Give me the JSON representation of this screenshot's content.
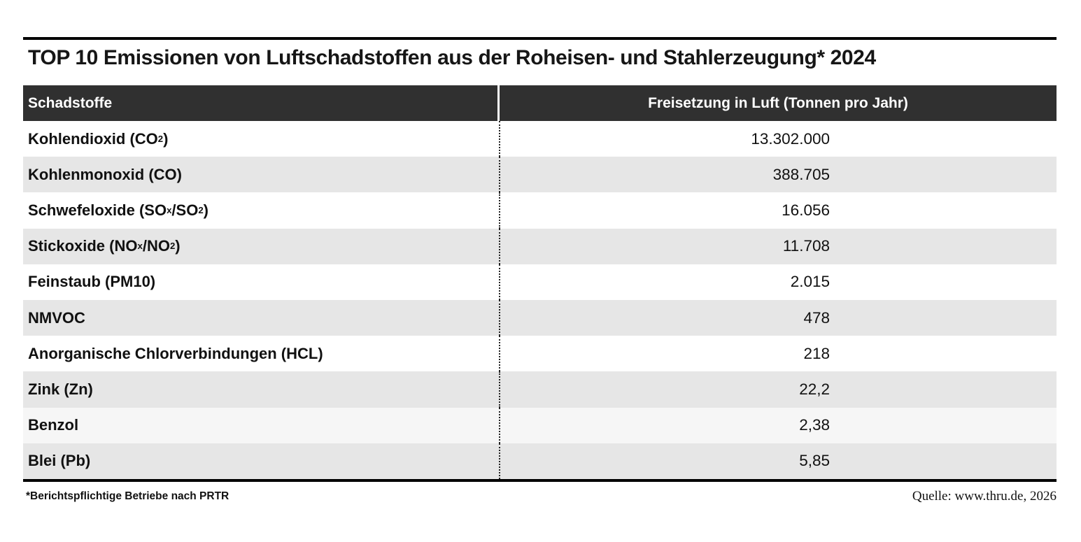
{
  "title": "TOP 10 Emissionen von Luftschadstoffen aus der Roheisen- und Stahlerzeugung* 2024",
  "table": {
    "columns": [
      "Schadstoffe",
      "Freisetzung in Luft (Tonnen pro Jahr)"
    ],
    "rows": [
      {
        "label_parts": [
          {
            "text": "Kohlendioxid (CO"
          },
          {
            "text": "2",
            "sub": true
          },
          {
            "text": ")"
          }
        ],
        "value": "13.302.000",
        "shade": "white"
      },
      {
        "label_parts": [
          {
            "text": "Kohlenmonoxid (CO)"
          }
        ],
        "value": "388.705",
        "shade": "gray"
      },
      {
        "label_parts": [
          {
            "text": "Schwefeloxide (SO"
          },
          {
            "text": "x",
            "sub": true
          },
          {
            "text": "/SO"
          },
          {
            "text": "2",
            "sub": true
          },
          {
            "text": ")"
          }
        ],
        "value": "16.056",
        "shade": "white"
      },
      {
        "label_parts": [
          {
            "text": "Stickoxide (NO"
          },
          {
            "text": "x",
            "sub": true
          },
          {
            "text": "/NO"
          },
          {
            "text": "2",
            "sub": true
          },
          {
            "text": ")"
          }
        ],
        "value": "11.708",
        "shade": "gray"
      },
      {
        "label_parts": [
          {
            "text": "Feinstaub (PM10)"
          }
        ],
        "value": "2.015",
        "shade": "white"
      },
      {
        "label_parts": [
          {
            "text": "NMVOC"
          }
        ],
        "value": "478",
        "shade": "gray"
      },
      {
        "label_parts": [
          {
            "text": "Anorganische Chlorverbindungen (HCL)"
          }
        ],
        "value": "218",
        "shade": "white"
      },
      {
        "label_parts": [
          {
            "text": "Zink (Zn)"
          }
        ],
        "value": "22,2",
        "shade": "gray"
      },
      {
        "label_parts": [
          {
            "text": "Benzol"
          }
        ],
        "value": "2,38",
        "shade": "pale"
      },
      {
        "label_parts": [
          {
            "text": "Blei (Pb)"
          }
        ],
        "value": "5,85",
        "shade": "gray"
      }
    ]
  },
  "footnote": "*Berichtspflichtige Betriebe nach PRTR",
  "source": "Quelle: www.thru.de, 2026",
  "colors": {
    "header_bg": "#303030",
    "header_text": "#ffffff",
    "row_white": "#ffffff",
    "row_gray": "#e6e6e6",
    "row_pale": "#f6f6f6",
    "rule": "#000000"
  },
  "chart_data": {
    "type": "table",
    "title": "TOP 10 Emissionen von Luftschadstoffen aus der Roheisen- und Stahlerzeugung* 2024",
    "columns": [
      "Schadstoffe",
      "Freisetzung in Luft (Tonnen pro Jahr)"
    ],
    "categories": [
      "Kohlendioxid (CO2)",
      "Kohlenmonoxid (CO)",
      "Schwefeloxide (SOx/SO2)",
      "Stickoxide (NOx/NO2)",
      "Feinstaub (PM10)",
      "NMVOC",
      "Anorganische Chlorverbindungen (HCL)",
      "Zink (Zn)",
      "Benzol",
      "Blei (Pb)"
    ],
    "values": [
      13302000,
      388705,
      16056,
      11708,
      2015,
      478,
      218,
      22.2,
      2.38,
      5.85
    ],
    "unit": "Tonnen pro Jahr",
    "footnote": "*Berichtspflichtige Betriebe nach PRTR",
    "source": "Quelle: www.thru.de, 2026"
  }
}
